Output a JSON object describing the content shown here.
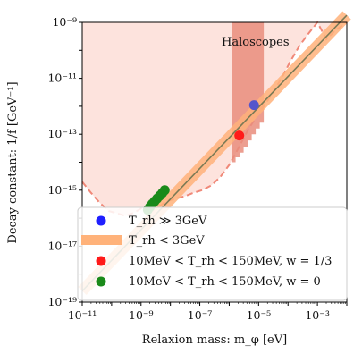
{
  "chart_data": {
    "type": "scatter",
    "xlabel": "Relaxion mass: m_φ [eV]",
    "ylabel": "Decay constant: 1/f [GeV⁻¹]",
    "xscale": "log",
    "yscale": "log",
    "xlim": [
      1e-11,
      0.01
    ],
    "ylim": [
      1e-19,
      1e-09
    ],
    "x_ticks": [
      {
        "value": 1e-11,
        "label": "10⁻¹¹"
      },
      {
        "value": 1e-09,
        "label": "10⁻⁹"
      },
      {
        "value": 1e-07,
        "label": "10⁻⁷"
      },
      {
        "value": 1e-05,
        "label": "10⁻⁵"
      },
      {
        "value": 0.001,
        "label": "10⁻³"
      }
    ],
    "y_ticks": [
      {
        "value": 1e-09,
        "label": "10⁻⁹"
      },
      {
        "value": 1e-11,
        "label": "10⁻¹¹"
      },
      {
        "value": 1e-13,
        "label": "10⁻¹³"
      },
      {
        "value": 1e-15,
        "label": "10⁻¹⁵"
      },
      {
        "value": 1e-17,
        "label": "10⁻¹⁷"
      },
      {
        "value": 1e-19,
        "label": "10⁻¹⁹"
      }
    ],
    "annotation": "Haloscopes",
    "legend": {
      "placement": "lower-right",
      "entries": [
        {
          "label": "T_rh ≫ 3GeV",
          "color": "#1f1fff",
          "marker": "circle"
        },
        {
          "label": "T_rh < 3GeV",
          "color": "#ffb27a",
          "marker": "band"
        },
        {
          "label": "10MeV < T_rh < 150MeV, w = 1/3",
          "color": "#ff1a1a",
          "marker": "circle"
        },
        {
          "label": "10MeV < T_rh < 150MeV, w = 0",
          "color": "#1a8a1a",
          "marker": "circle"
        }
      ]
    },
    "band_line": {
      "name": "T_rh < 3GeV",
      "x": [
        1e-11,
        0.01
      ],
      "y": [
        2.5e-19,
        1.8e-09
      ],
      "band_color": "#ffb27a",
      "line_color": "#7a7a55"
    },
    "points": {
      "blue": {
        "x": [
          7e-06
        ],
        "y": [
          1.1e-12
        ],
        "color": "#5555cc"
      },
      "red": {
        "x": [
          2.2e-06
        ],
        "y": [
          9e-14
        ],
        "color": "#ff1a1a"
      },
      "green": {
        "x": [
          1.7e-09,
          2e-09,
          2.4e-09,
          2.9e-09,
          3.5e-09,
          4.3e-09,
          5.3e-09,
          6.4e-09
        ],
        "y": [
          2e-16,
          2.5e-16,
          3.2e-16,
          4e-16,
          5e-16,
          6.3e-16,
          7.9e-16,
          1e-15
        ],
        "color": "#1a8a1a"
      }
    },
    "excluded_region": {
      "color": "#fde3dd",
      "boundary_x": [
        1e-11,
        2e-11,
        4e-11,
        8e-11,
        1.5e-10,
        3e-10,
        6e-10,
        1.2e-09,
        2e-09,
        4e-09,
        7e-09,
        1.5e-08,
        3e-08,
        6e-08,
        1.2e-07,
        2.5e-07,
        5e-07,
        1e-06,
        2e-06,
        4e-06,
        8e-06,
        1.5e-05,
        3e-05,
        6e-05,
        0.00012,
        0.00025,
        0.0005,
        0.001,
        0.002,
        0.004,
        0.01
      ],
      "boundary_y": [
        2e-15,
        8e-16,
        3.5e-16,
        1.8e-16,
        1.5e-16,
        1.2e-16,
        1.6e-16,
        2.5e-16,
        1.5e-16,
        2.5e-16,
        4e-16,
        5e-16,
        6e-16,
        8e-16,
        1e-15,
        1.5e-15,
        3e-15,
        8e-15,
        3e-14,
        1.2e-13,
        4e-13,
        1e-12,
        3e-12,
        1e-11,
        4e-11,
        1.5e-10,
        4e-10,
        1e-09,
        2.5e-10,
        5e-10,
        1e-09
      ]
    },
    "haloscope_region": {
      "color": "#e98d7c",
      "x_range": [
        1.2e-06,
        1.5e-05
      ],
      "lower_y": [
        1e-14,
        1.5e-14,
        2.2e-14,
        3.5e-14,
        6e-14,
        1e-13,
        1.6e-13,
        2.6e-13
      ],
      "upper_y": 1e-09
    }
  }
}
